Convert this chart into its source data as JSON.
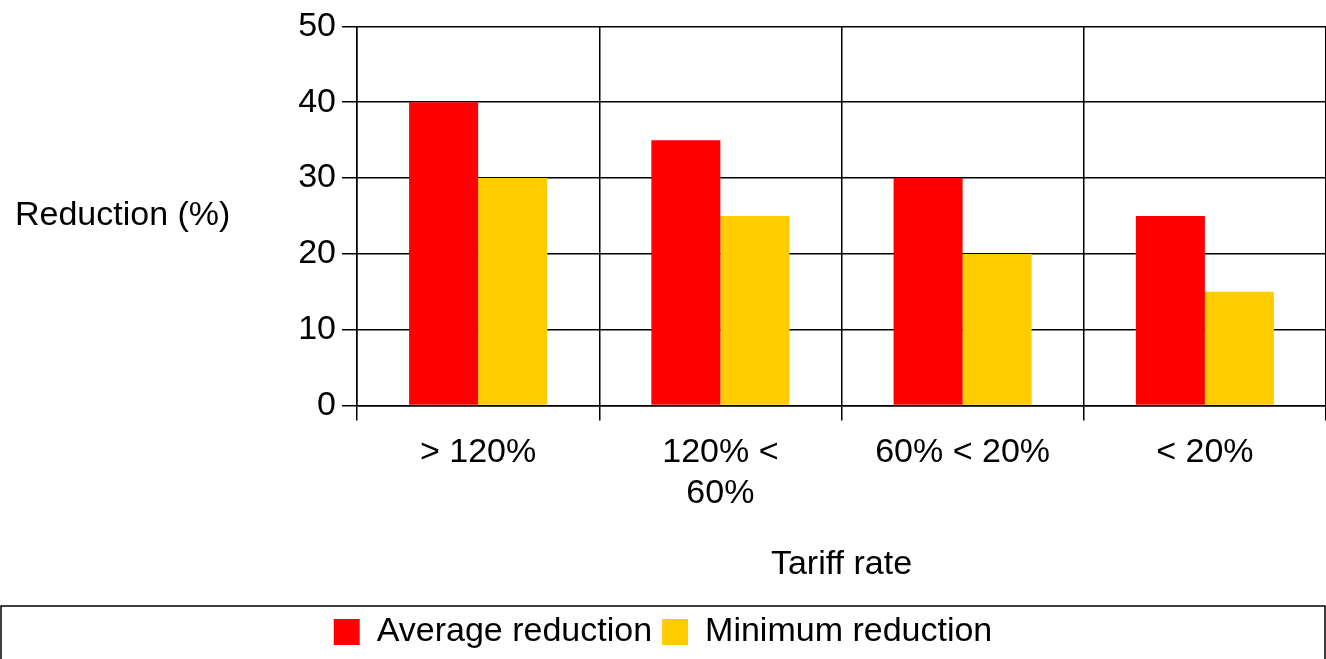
{
  "chart_data": {
    "type": "bar",
    "xlabel": "Tariff rate",
    "ylabel": "Reduction (%)",
    "categories": [
      "> 120%",
      "120% < 60%",
      "60% < 20%",
      "< 20%"
    ],
    "series": [
      {
        "name": "Average reduction",
        "color": "#ff0000",
        "values": [
          40,
          35,
          30,
          25
        ]
      },
      {
        "name": "Minimum reduction",
        "color": "#ffcc00",
        "values": [
          30,
          25,
          20,
          15
        ]
      }
    ],
    "ylim": [
      0,
      50
    ],
    "yticks": [
      0,
      10,
      20,
      30,
      40,
      50
    ],
    "grid": true,
    "legend": "bottom"
  }
}
